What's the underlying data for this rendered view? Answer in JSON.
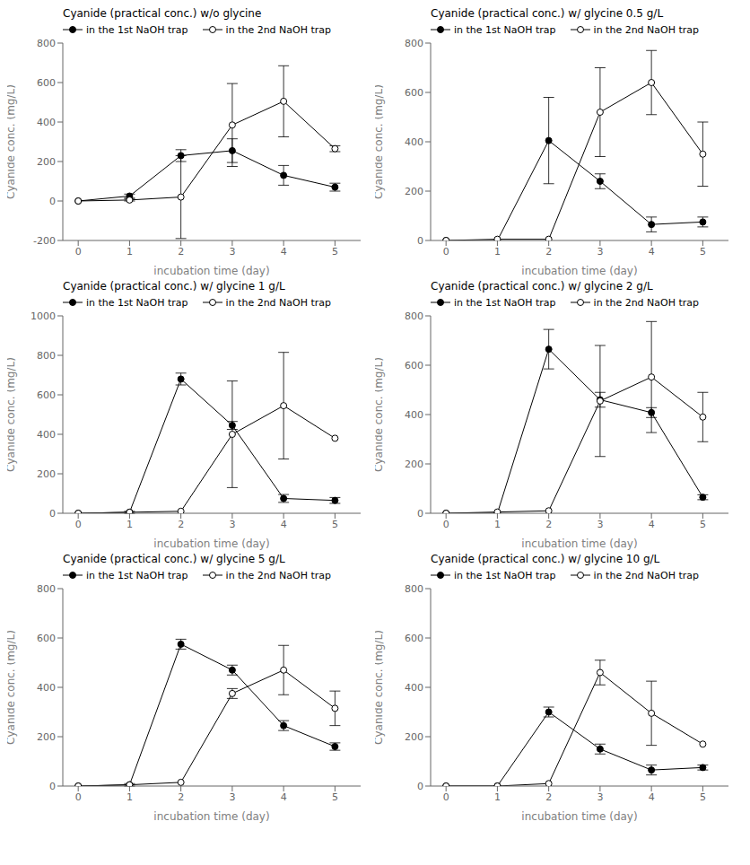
{
  "chart_data": [
    {
      "type": "line",
      "title": "Cyanide (practical conc.) w/o glycine",
      "xlabel": "incubation time (day)",
      "ylabel": "Cyanide conc. (mg/L)",
      "x": [
        0,
        1,
        2,
        3,
        4,
        5
      ],
      "series": [
        {
          "name": "in the 1st NaOH trap",
          "color": "black",
          "marker": "circle",
          "values": [
            0,
            25,
            230,
            255,
            130,
            70
          ],
          "errors": [
            0,
            10,
            30,
            60,
            50,
            20
          ]
        },
        {
          "name": "in the 2nd NaOH trap",
          "color": "black",
          "marker": "open_circle",
          "values": [
            0,
            5,
            20,
            385,
            505,
            265
          ],
          "errors": [
            0,
            5,
            210,
            210,
            180,
            15
          ]
        }
      ],
      "xlim": [
        -0.3,
        5.5
      ],
      "xticks": [
        0,
        1,
        2,
        3,
        4,
        5
      ],
      "ylim": [
        -200,
        800
      ],
      "yticks": [
        -200,
        0,
        200,
        400,
        600,
        800
      ],
      "legend": "upper left",
      "grid": false
    },
    {
      "type": "line",
      "title": "Cyanide (practical conc.) w/ glycine 0.5 g/L",
      "xlabel": "incubation time (day)",
      "ylabel": "Cyanide conc. (mg/L)",
      "x": [
        0,
        1,
        2,
        3,
        4,
        5
      ],
      "series": [
        {
          "name": "in the 1st NaOH trap",
          "color": "black",
          "marker": "circle",
          "values": [
            0,
            0,
            405,
            240,
            65,
            75
          ],
          "errors": [
            0,
            0,
            175,
            30,
            30,
            20
          ]
        },
        {
          "name": "in the 2nd NaOH trap",
          "color": "black",
          "marker": "open_circle",
          "values": [
            0,
            5,
            5,
            520,
            640,
            350
          ],
          "errors": [
            0,
            0,
            0,
            180,
            130,
            130
          ]
        }
      ],
      "xlim": [
        -0.3,
        5.5
      ],
      "xticks": [
        0,
        1,
        2,
        3,
        4,
        5
      ],
      "ylim": [
        0,
        800
      ],
      "yticks": [
        0,
        200,
        400,
        600,
        800
      ],
      "legend": "upper left",
      "grid": false
    },
    {
      "type": "line",
      "title": "Cyanide (practical conc.) w/ glycine 1 g/L",
      "xlabel": "incubation time (day)",
      "ylabel": "Cyanide conc. (mg/L)",
      "x": [
        0,
        1,
        2,
        3,
        4,
        5
      ],
      "series": [
        {
          "name": "in the 1st NaOH trap",
          "color": "black",
          "marker": "circle",
          "values": [
            0,
            5,
            680,
            445,
            75,
            65
          ],
          "errors": [
            0,
            5,
            30,
            20,
            20,
            15
          ]
        },
        {
          "name": "in the 2nd NaOH trap",
          "color": "black",
          "marker": "open_circle",
          "values": [
            0,
            5,
            10,
            400,
            545,
            380
          ],
          "errors": [
            0,
            0,
            0,
            270,
            270,
            0
          ]
        }
      ],
      "xlim": [
        -0.3,
        5.5
      ],
      "xticks": [
        0,
        1,
        2,
        3,
        4,
        5
      ],
      "ylim": [
        0,
        1000
      ],
      "yticks": [
        0,
        200,
        400,
        600,
        800,
        1000
      ],
      "legend": "upper left",
      "grid": false
    },
    {
      "type": "line",
      "title": "Cyanide (practical conc.) w/ glycine 2 g/L",
      "xlabel": "incubation time (day)",
      "ylabel": "Cyanide conc. (mg/L)",
      "x": [
        0,
        1,
        2,
        3,
        4,
        5
      ],
      "series": [
        {
          "name": "in the 1st NaOH trap",
          "color": "black",
          "marker": "circle",
          "values": [
            0,
            0,
            665,
            460,
            408,
            65
          ],
          "errors": [
            0,
            0,
            80,
            30,
            20,
            10
          ]
        },
        {
          "name": "in the 2nd NaOH trap",
          "color": "black",
          "marker": "open_circle",
          "values": [
            0,
            5,
            10,
            455,
            552,
            390
          ],
          "errors": [
            0,
            0,
            0,
            225,
            225,
            100
          ]
        }
      ],
      "xlim": [
        -0.3,
        5.5
      ],
      "xticks": [
        0,
        1,
        2,
        3,
        4,
        5
      ],
      "ylim": [
        0,
        800
      ],
      "yticks": [
        0,
        200,
        400,
        600,
        800
      ],
      "legend": "upper left",
      "grid": false
    },
    {
      "type": "line",
      "title": "Cyanide (practical conc.) w/ glycine 5 g/L",
      "xlabel": "incubation time (day)",
      "ylabel": "Cyanide conc. (mg/L)",
      "x": [
        0,
        1,
        2,
        3,
        4,
        5
      ],
      "series": [
        {
          "name": "in the 1st NaOH trap",
          "color": "black",
          "marker": "circle",
          "values": [
            0,
            5,
            575,
            470,
            245,
            160
          ],
          "errors": [
            0,
            5,
            20,
            20,
            20,
            15
          ]
        },
        {
          "name": "in the 2nd NaOH trap",
          "color": "black",
          "marker": "open_circle",
          "values": [
            0,
            5,
            15,
            375,
            470,
            315
          ],
          "errors": [
            0,
            0,
            0,
            20,
            100,
            70
          ]
        }
      ],
      "xlim": [
        -0.3,
        5.5
      ],
      "xticks": [
        0,
        1,
        2,
        3,
        4,
        5
      ],
      "ylim": [
        0,
        800
      ],
      "yticks": [
        0,
        200,
        400,
        600,
        800
      ],
      "legend": "upper left",
      "grid": false
    },
    {
      "type": "line",
      "title": "Cyanide (practical conc.) w/ glycine 10 g/L",
      "xlabel": "incubation time (day)",
      "ylabel": "Cyanide conc. (mg/L)",
      "x": [
        0,
        1,
        2,
        3,
        4,
        5
      ],
      "series": [
        {
          "name": "in the 1st NaOH trap",
          "color": "black",
          "marker": "circle",
          "values": [
            0,
            0,
            300,
            150,
            65,
            75
          ],
          "errors": [
            0,
            0,
            20,
            20,
            20,
            10
          ]
        },
        {
          "name": "in the 2nd NaOH trap",
          "color": "black",
          "marker": "open_circle",
          "values": [
            0,
            0,
            10,
            460,
            295,
            170
          ],
          "errors": [
            0,
            0,
            0,
            50,
            130,
            0
          ]
        }
      ],
      "xlim": [
        -0.3,
        5.5
      ],
      "xticks": [
        0,
        1,
        2,
        3,
        4,
        5
      ],
      "ylim": [
        0,
        800
      ],
      "yticks": [
        0,
        200,
        400,
        600,
        800
      ],
      "legend": "upper left",
      "grid": false
    }
  ]
}
